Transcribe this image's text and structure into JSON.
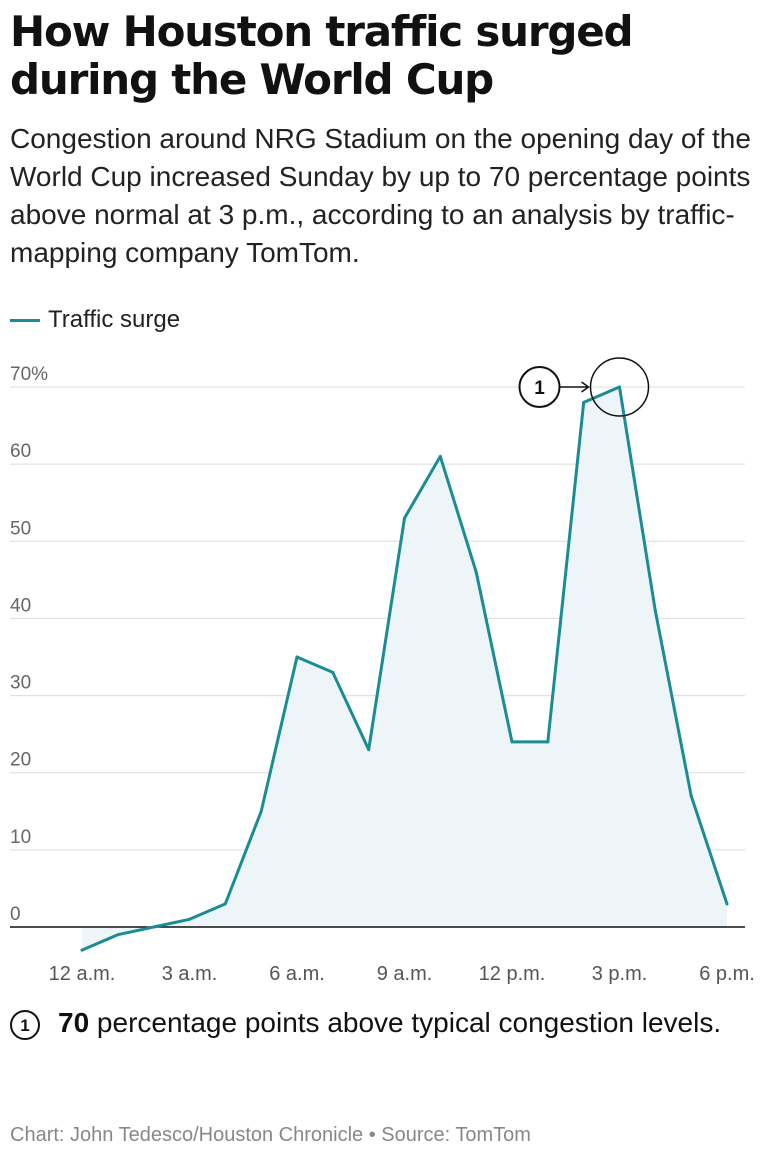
{
  "header": {
    "title": "How Houston traffic surged during the World Cup",
    "subtitle": "Congestion around NRG Stadium on the opening day of the World Cup increased Sunday by up to 70 percentage points above normal at 3 p.m., according to an analysis by traffic-mapping company TomTom."
  },
  "legend": {
    "label": "Traffic surge",
    "color": "#1b8c95"
  },
  "annotation": {
    "badge": "1",
    "value": "70",
    "text": " percentage points above typical congestion levels."
  },
  "footer": {
    "credit": "Chart: John Tedesco/Houston Chronicle • Source: TomTom"
  },
  "chart_data": {
    "type": "area",
    "x_hours": [
      0,
      1,
      2,
      3,
      4,
      5,
      6,
      7,
      8,
      9,
      10,
      11,
      12,
      13,
      14,
      15,
      16,
      17,
      18
    ],
    "x_tick_labels": [
      "12 a.m.",
      "3 a.m.",
      "6 a.m.",
      "9 a.m.",
      "12 p.m.",
      "3 p.m.",
      "6 p.m."
    ],
    "x_tick_hours": [
      0,
      3,
      6,
      9,
      12,
      15,
      18
    ],
    "series": [
      {
        "name": "Traffic surge",
        "values": [
          -3,
          -1,
          0,
          1,
          3,
          15,
          35,
          33,
          23,
          53,
          61,
          46,
          24,
          24,
          68,
          70,
          41,
          17,
          3
        ]
      }
    ],
    "y_tick_labels": [
      "0",
      "10",
      "20",
      "30",
      "40",
      "50",
      "60",
      "70%"
    ],
    "y_tick_values": [
      0,
      10,
      20,
      30,
      40,
      50,
      60,
      70
    ],
    "ylim": [
      -3,
      70
    ],
    "xlim": [
      0,
      18
    ],
    "grid": true,
    "line_color": "#1b8c95",
    "fill_color": "#eef5f8",
    "annotation": {
      "label": "1",
      "x_hour": 15,
      "y_value": 70
    }
  }
}
